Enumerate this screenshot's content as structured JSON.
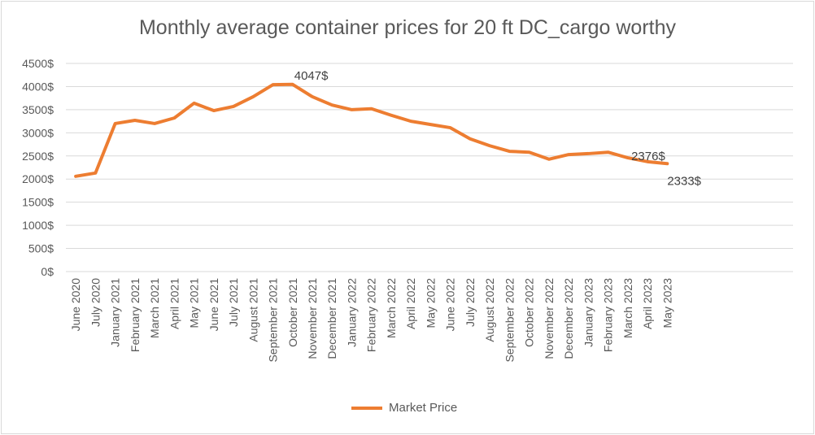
{
  "chart_data": {
    "type": "line",
    "title": "Monthly average container prices for 20 ft DC_cargo worthy",
    "xlabel": "",
    "ylabel": "",
    "ylim": [
      0,
      4500
    ],
    "yticks": [
      0,
      500,
      1000,
      1500,
      2000,
      2500,
      3000,
      3500,
      4000,
      4500
    ],
    "ytick_labels": [
      "0$",
      "500$",
      "1000$",
      "1500$",
      "2000$",
      "2500$",
      "3000$",
      "3500$",
      "4000$",
      "4500$"
    ],
    "grid": true,
    "legend_position": "bottom",
    "color": "#ed7d31",
    "categories": [
      "June 2020",
      "July 2020",
      "January 2021",
      "February 2021",
      "March 2021",
      "April 2021",
      "May 2021",
      "June 2021",
      "July 2021",
      "August 2021",
      "September 2021",
      "October 2021",
      "November 2021",
      "December 2021",
      "January 2022",
      "February 2022",
      "March 2022",
      "April 2022",
      "May 2022",
      "June 2022",
      "July 2022",
      "August 2022",
      "September 2022",
      "October 2022",
      "November 2022",
      "December 2022",
      "January 2023",
      "February 2023",
      "March 2023",
      "April 2023",
      "May 2023"
    ],
    "series": [
      {
        "name": "Market Price",
        "values": [
          2060,
          2130,
          3200,
          3270,
          3200,
          3320,
          3640,
          3480,
          3570,
          3780,
          4040,
          4047,
          3780,
          3600,
          3500,
          3520,
          3380,
          3250,
          3180,
          3110,
          2870,
          2720,
          2600,
          2580,
          2430,
          2530,
          2550,
          2580,
          2460,
          2376,
          2333
        ]
      }
    ],
    "data_labels": [
      {
        "category": "October 2021",
        "text": "4047$"
      },
      {
        "category": "April 2023",
        "text": "2376$"
      },
      {
        "category": "May 2023",
        "text": "2333$"
      }
    ]
  }
}
